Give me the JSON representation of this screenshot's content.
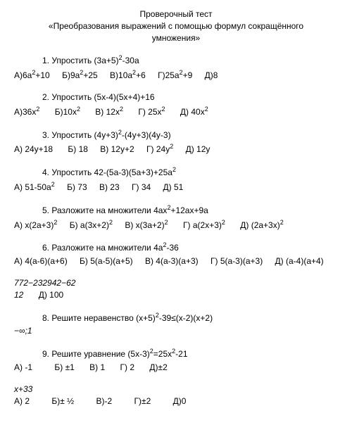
{
  "title": {
    "line1": "Проверочный тест",
    "line2": "«Преобразования выражений с помощью формул сокращённого",
    "line3": "умножения»"
  },
  "q1": {
    "text": "1. Упростить (3a+5)²-30a",
    "a": "А)6a²+10",
    "b": "Б)9a²+25",
    "c": "В)10a²+6",
    "d": "Г)25a²+9",
    "e": "Д)8"
  },
  "q2": {
    "text": "2. Упростить (5x-4)(5x+4)+16",
    "a": "А)36x²",
    "b": "Б)10x²",
    "c": "В) 12x²",
    "d": "Г) 25x²",
    "e": "Д)  40x²"
  },
  "q3": {
    "text": "3. Упростить (4y+3)²-(4y+3)(4y-3)",
    "a": "А) 24y+18",
    "b": "Б) 18",
    "c": "В) 12y+2",
    "d": "Г) 24y²",
    "e": "Д) 12y"
  },
  "q4": {
    "text": "4. Упростить 42-(5a-3)(5a+3)+25a²",
    "a": "А) 51-50a²",
    "b": "Б) 73",
    "c": "В) 23",
    "d": "Г) 34",
    "e": "Д) 51"
  },
  "q5": {
    "text": "5. Разложите на множители 4ax²+12ax+9a",
    "a": "А) x(2a+3)²",
    "b": "Б) a(3x+2)²",
    "c": "В) x(3a+2)²",
    "d": "Г) a(2x+3)²",
    "e": "Д) (2a+3x)²"
  },
  "q6": {
    "text": "6. Разложите на множители 4a²-36",
    "a": "А) 4(a-6)(a+6)",
    "b": "Б) 5(a-5)(a+5)",
    "c": "В) 4(a-3)(a+3)",
    "d": "Г) 5(a-3)(a+3)",
    "e": "Д) (a-4)(a+4)"
  },
  "frag7": {
    "line1": "772−232942−62",
    "line2a": "12",
    "line2b": "Д) 100"
  },
  "q8": {
    "text": "8.  Решите неравенство (x+5)²-39≤(x-2)(x+2)",
    "frag": "−∞;1"
  },
  "q9": {
    "text": "9. Решите уравнение (5x-3)²=25x²-21",
    "a": "А) -1",
    "b": "Б) ±1",
    "c": "В) 1",
    "d": "Г) 2",
    "e": "Д)±2"
  },
  "frag10": {
    "line1": "x+33",
    "a": "А) 2",
    "b": "Б)± ½",
    "c": "В)-2",
    "d": "Г)±2",
    "e": "Д)0"
  }
}
